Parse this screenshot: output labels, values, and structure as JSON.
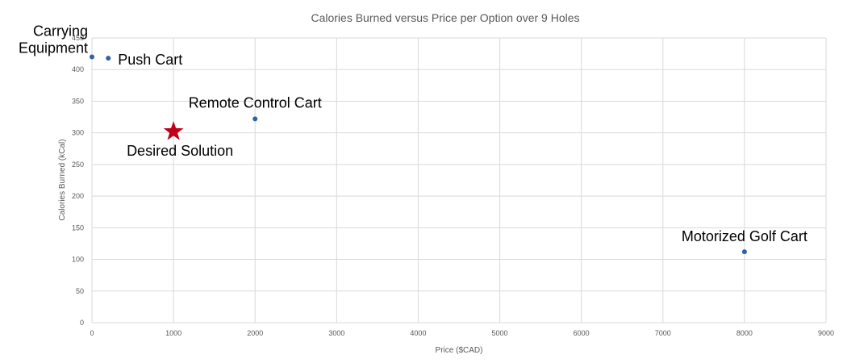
{
  "chart_data": {
    "type": "scatter",
    "title": "Calories Burned versus Price per Option over 9 Holes",
    "xlabel": "Price ($CAD)",
    "ylabel": "Calories Burned (kCal)",
    "xlim": [
      0,
      9000
    ],
    "ylim": [
      0,
      450
    ],
    "xticks": [
      0,
      1000,
      2000,
      3000,
      4000,
      5000,
      6000,
      7000,
      8000,
      9000
    ],
    "yticks": [
      0,
      50,
      100,
      150,
      200,
      250,
      300,
      350,
      400,
      450
    ],
    "grid": true,
    "series": [
      {
        "color": "#2e62a8",
        "points": [
          {
            "x": 0,
            "y": 420,
            "label": [
              "Carrying",
              "Equipment"
            ]
          },
          {
            "x": 200,
            "y": 418,
            "label": [
              "Push Cart"
            ]
          },
          {
            "x": 2000,
            "y": 322,
            "label": [
              "Remote Control Cart"
            ]
          },
          {
            "x": 8000,
            "y": 112,
            "label": [
              "Motorized Golf Cart"
            ]
          }
        ]
      }
    ],
    "annotations": [
      {
        "x": 1000,
        "y": 302,
        "label": "Desired Solution",
        "marker": "star",
        "color": "#c00018"
      }
    ]
  }
}
